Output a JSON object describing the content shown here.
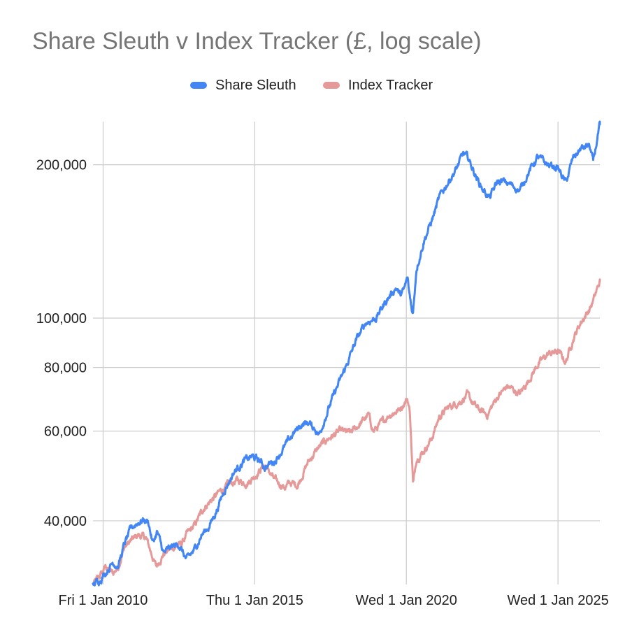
{
  "chart_data": {
    "type": "line",
    "title": "Share Sleuth v Index Tracker (£, log scale)",
    "xlabel": "",
    "ylabel": "",
    "log_scale_y": true,
    "grid": true,
    "legend_position": "top",
    "x_ticks": [
      "Fri 1 Jan 2010",
      "Thu 1 Jan 2015",
      "Wed 1 Jan 2020",
      "Wed 1 Jan 2025"
    ],
    "y_ticks": [
      {
        "value": 40000,
        "label": "40,000"
      },
      {
        "value": 60000,
        "label": "60,000"
      },
      {
        "value": 80000,
        "label": "80,000"
      },
      {
        "value": 100000,
        "label": "100,000"
      },
      {
        "value": 200000,
        "label": "200,000"
      }
    ],
    "x_range": [
      "2009-09-01",
      "2026-05-20"
    ],
    "y_range": [
      30000,
      243000
    ],
    "series": [
      {
        "name": "Share Sleuth",
        "color": "#4285f4",
        "points": [
          [
            "2009-09-01",
            30000
          ],
          [
            "2009-11-15",
            30600
          ],
          [
            "2010-02-01",
            31700
          ],
          [
            "2010-05-01",
            33200
          ],
          [
            "2010-07-01",
            32600
          ],
          [
            "2010-09-15",
            36000
          ],
          [
            "2010-12-01",
            38500
          ],
          [
            "2011-02-01",
            39500
          ],
          [
            "2011-05-01",
            40200
          ],
          [
            "2011-07-01",
            39800
          ],
          [
            "2011-08-20",
            36200
          ],
          [
            "2011-10-15",
            38000
          ],
          [
            "2012-01-01",
            34500
          ],
          [
            "2012-04-01",
            35500
          ],
          [
            "2012-07-01",
            36000
          ],
          [
            "2012-10-01",
            33500
          ],
          [
            "2013-01-01",
            35000
          ],
          [
            "2013-04-01",
            37500
          ],
          [
            "2013-07-01",
            39000
          ],
          [
            "2013-10-01",
            42000
          ],
          [
            "2014-01-01",
            46000
          ],
          [
            "2014-05-01",
            50000
          ],
          [
            "2014-09-01",
            52500
          ],
          [
            "2014-12-01",
            53500
          ],
          [
            "2015-03-01",
            52500
          ],
          [
            "2015-05-01",
            51000
          ],
          [
            "2015-09-01",
            52500
          ],
          [
            "2016-01-01",
            56000
          ],
          [
            "2016-04-01",
            59000
          ],
          [
            "2016-07-01",
            61500
          ],
          [
            "2016-10-01",
            62500
          ],
          [
            "2017-01-01",
            60500
          ],
          [
            "2017-02-15",
            59000
          ],
          [
            "2017-05-01",
            64000
          ],
          [
            "2017-09-01",
            72000
          ],
          [
            "2018-01-01",
            80000
          ],
          [
            "2018-05-01",
            90000
          ],
          [
            "2018-09-01",
            98000
          ],
          [
            "2019-01-01",
            100000
          ],
          [
            "2019-05-01",
            108000
          ],
          [
            "2019-09-01",
            115000
          ],
          [
            "2019-10-15",
            111000
          ],
          [
            "2019-12-01",
            113000
          ],
          [
            "2020-01-15",
            120000
          ],
          [
            "2020-02-01",
            113000
          ],
          [
            "2020-03-20",
            101500
          ],
          [
            "2020-05-01",
            125000
          ],
          [
            "2020-08-01",
            142000
          ],
          [
            "2020-11-01",
            155000
          ],
          [
            "2021-02-01",
            172000
          ],
          [
            "2021-05-01",
            183000
          ],
          [
            "2021-09-01",
            197000
          ],
          [
            "2021-11-15",
            210000
          ],
          [
            "2022-01-15",
            206000
          ],
          [
            "2022-05-01",
            188000
          ],
          [
            "2022-07-01",
            180000
          ],
          [
            "2022-10-01",
            172000
          ],
          [
            "2023-01-01",
            185000
          ],
          [
            "2023-04-01",
            185000
          ],
          [
            "2023-07-01",
            182000
          ],
          [
            "2023-10-01",
            178000
          ],
          [
            "2024-01-01",
            192000
          ],
          [
            "2024-05-01",
            207000
          ],
          [
            "2024-09-01",
            200000
          ],
          [
            "2025-01-01",
            197000
          ],
          [
            "2025-04-05",
            184000
          ],
          [
            "2025-07-01",
            206000
          ],
          [
            "2025-10-01",
            215000
          ],
          [
            "2026-01-15",
            218000
          ],
          [
            "2026-03-01",
            202000
          ],
          [
            "2026-05-20",
            240000
          ]
        ]
      },
      {
        "name": "Index Tracker",
        "color": "#e69999",
        "points": [
          [
            "2009-09-01",
            30000
          ],
          [
            "2009-11-15",
            31000
          ],
          [
            "2010-02-01",
            32500
          ],
          [
            "2010-05-01",
            31500
          ],
          [
            "2010-07-01",
            32500
          ],
          [
            "2010-09-15",
            35500
          ],
          [
            "2010-12-01",
            36500
          ],
          [
            "2011-03-01",
            37500
          ],
          [
            "2011-06-01",
            37000
          ],
          [
            "2011-08-20",
            34000
          ],
          [
            "2011-10-01",
            32500
          ],
          [
            "2012-01-01",
            34500
          ],
          [
            "2012-05-01",
            35500
          ],
          [
            "2012-08-01",
            36000
          ],
          [
            "2012-10-01",
            37500
          ],
          [
            "2013-01-01",
            39000
          ],
          [
            "2013-05-01",
            42500
          ],
          [
            "2013-08-01",
            44000
          ],
          [
            "2014-01-01",
            46500
          ],
          [
            "2014-06-01",
            48000
          ],
          [
            "2014-10-01",
            47500
          ],
          [
            "2015-01-01",
            49000
          ],
          [
            "2015-05-01",
            51500
          ],
          [
            "2015-09-01",
            48000
          ],
          [
            "2016-01-01",
            46500
          ],
          [
            "2016-03-01",
            47500
          ],
          [
            "2016-06-01",
            47000
          ],
          [
            "2016-10-01",
            52000
          ],
          [
            "2017-02-01",
            55500
          ],
          [
            "2017-06-01",
            58000
          ],
          [
            "2017-11-01",
            60000
          ],
          [
            "2018-03-01",
            59500
          ],
          [
            "2018-06-01",
            61500
          ],
          [
            "2018-10-01",
            64500
          ],
          [
            "2018-12-01",
            60000
          ],
          [
            "2019-03-01",
            62000
          ],
          [
            "2019-06-01",
            64500
          ],
          [
            "2019-10-01",
            66000
          ],
          [
            "2020-01-15",
            69500
          ],
          [
            "2020-02-15",
            65000
          ],
          [
            "2020-03-23",
            47000
          ],
          [
            "2020-05-01",
            53000
          ],
          [
            "2020-08-01",
            55000
          ],
          [
            "2020-11-01",
            58000
          ],
          [
            "2021-02-01",
            64000
          ],
          [
            "2021-06-01",
            67000
          ],
          [
            "2021-10-01",
            68500
          ],
          [
            "2022-01-01",
            70500
          ],
          [
            "2022-05-01",
            66500
          ],
          [
            "2022-09-01",
            64500
          ],
          [
            "2023-01-01",
            70000
          ],
          [
            "2023-05-01",
            73500
          ],
          [
            "2023-10-01",
            71000
          ],
          [
            "2024-01-01",
            75000
          ],
          [
            "2024-05-01",
            81000
          ],
          [
            "2024-09-01",
            85000
          ],
          [
            "2025-01-01",
            86000
          ],
          [
            "2025-04-05",
            82000
          ],
          [
            "2025-07-01",
            91000
          ],
          [
            "2025-10-01",
            98000
          ],
          [
            "2026-01-15",
            104000
          ],
          [
            "2026-03-01",
            108000
          ],
          [
            "2026-05-20",
            118000
          ]
        ]
      }
    ]
  }
}
